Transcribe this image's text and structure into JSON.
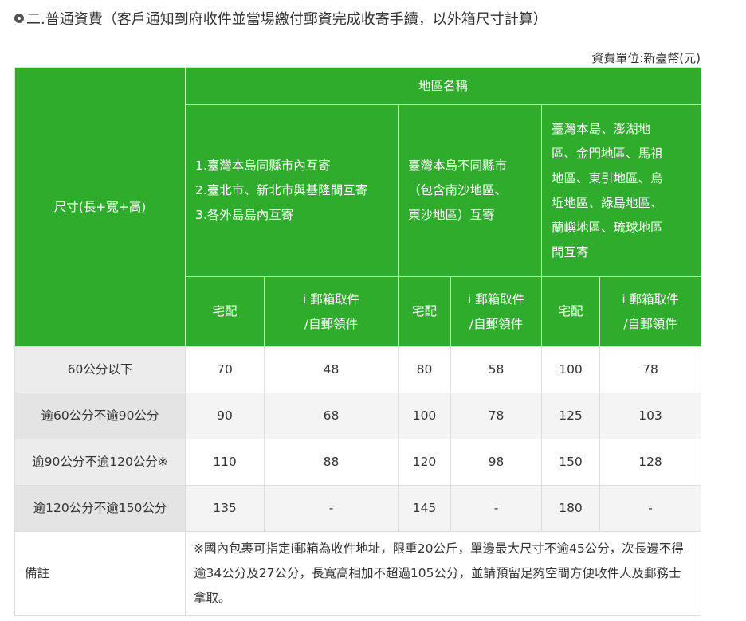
{
  "title": "二.普通資費（客戶通知到府收件並當場繳付郵資完成收寄手續，以外箱尺寸計算）",
  "unit": "資費單位:新臺幣(元)",
  "header": {
    "size_label": "尺寸(長+寬+高)",
    "region_label": "地區名稱",
    "regions": [
      [
        "1.臺灣本島同縣市內互寄",
        "2.臺北市、新北市與基隆間互寄",
        "3.各外島島內互寄"
      ],
      [
        "臺灣本島不同縣市",
        "（包含南沙地區、",
        "東沙地區）互寄"
      ],
      [
        "臺灣本島、澎湖地",
        "區、金門地區、馬祖",
        "地區、東引地區、烏",
        "坵地區、綠島地區、",
        "蘭嶼地區、琉球地區",
        "間互寄"
      ]
    ],
    "sub": [
      "宅配",
      "i 郵箱取件",
      "/自郵領件"
    ]
  },
  "rows": [
    {
      "label": "60公分以下",
      "values": [
        "70",
        "48",
        "80",
        "58",
        "100",
        "78"
      ]
    },
    {
      "label": "逾60公分不逾90公分",
      "values": [
        "90",
        "68",
        "100",
        "78",
        "125",
        "103"
      ]
    },
    {
      "label": "逾90公分不逾120公分※",
      "values": [
        "110",
        "88",
        "120",
        "98",
        "150",
        "128"
      ]
    },
    {
      "label": "逾120公分不逾150公分",
      "values": [
        "135",
        "-",
        "145",
        "-",
        "180",
        "-"
      ]
    }
  ],
  "remark": {
    "label": "備註",
    "text": "※國內包裹可指定i郵箱為收件地址，限重20公斤，單邊最大尺寸不逾45公分，次長邊不得逾34公分及27公分，長寬高相加不超過105公分，並請預留足夠空間方便收件人及郵務士拿取。"
  },
  "colors": {
    "header_green": "#2fac2c"
  }
}
